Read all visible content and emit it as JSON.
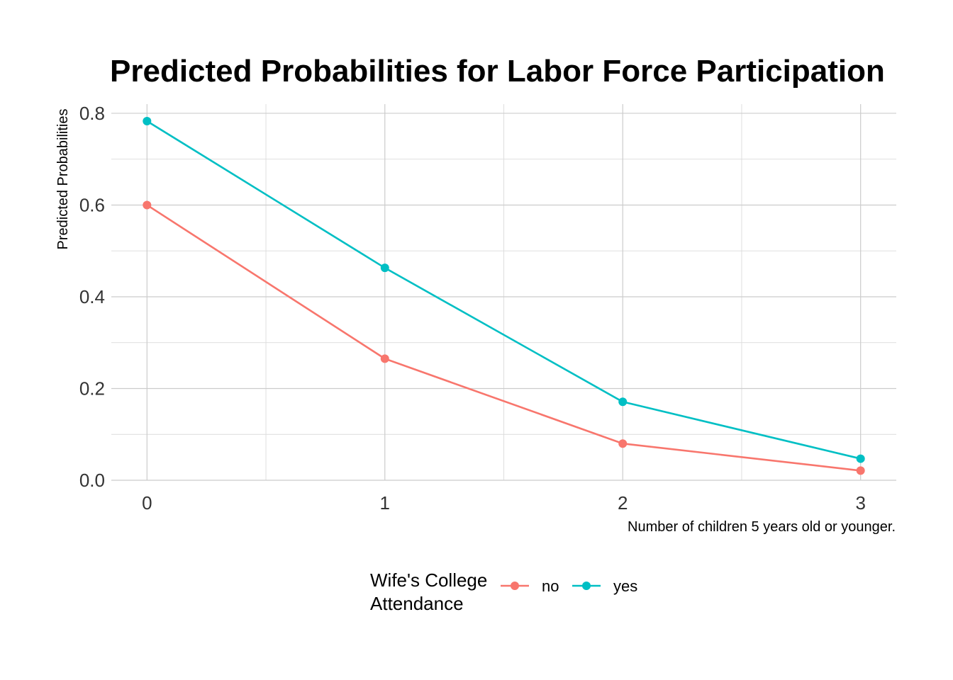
{
  "chart_data": {
    "type": "line",
    "title": "Predicted Probabilities for Labor Force Participation",
    "xlabel": "Number of children 5 years old or younger.",
    "ylabel": "Predicted Probabilities",
    "x": [
      0,
      1,
      2,
      3
    ],
    "x_tick_labels": [
      "0",
      "1",
      "2",
      "3"
    ],
    "y_tick_labels": [
      "0.0",
      "0.2",
      "0.4",
      "0.6",
      "0.8"
    ],
    "y_ticks": [
      0.0,
      0.2,
      0.4,
      0.6,
      0.8
    ],
    "xlim": [
      -0.15,
      3.15
    ],
    "ylim": [
      0.0,
      0.82
    ],
    "grid": true,
    "legend": {
      "title_lines": [
        "Wife's College",
        "Attendance"
      ],
      "placement": "bottom"
    },
    "series": [
      {
        "name": "no",
        "color": "#F8766D",
        "values": [
          0.6,
          0.265,
          0.08,
          0.021
        ]
      },
      {
        "name": "yes",
        "color": "#00BFC4",
        "values": [
          0.783,
          0.463,
          0.171,
          0.047
        ]
      }
    ]
  }
}
